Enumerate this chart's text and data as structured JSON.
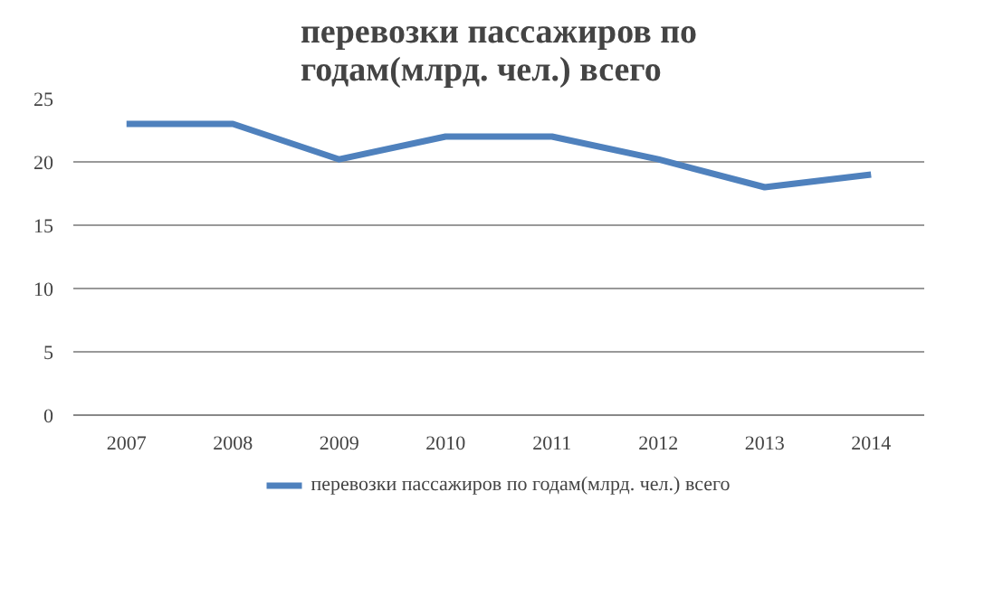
{
  "chart_data": {
    "type": "line",
    "title": "перевозки пассажиров по годам(млрд. чел.) всего",
    "categories": [
      "2007",
      "2008",
      "2009",
      "2010",
      "2011",
      "2012",
      "2013",
      "2014"
    ],
    "series": [
      {
        "name": "перевозки пассажиров по годам(млрд. чел.) всего",
        "color": "#4f81bd",
        "values": [
          23,
          23,
          20.2,
          22,
          22,
          20.2,
          18,
          19
        ]
      }
    ],
    "ylim": [
      0,
      25
    ],
    "yticks": [
      0,
      5,
      10,
      15,
      20,
      25
    ],
    "grid": "y",
    "legend": "bottom",
    "marker": "none",
    "line_style": "solid"
  }
}
